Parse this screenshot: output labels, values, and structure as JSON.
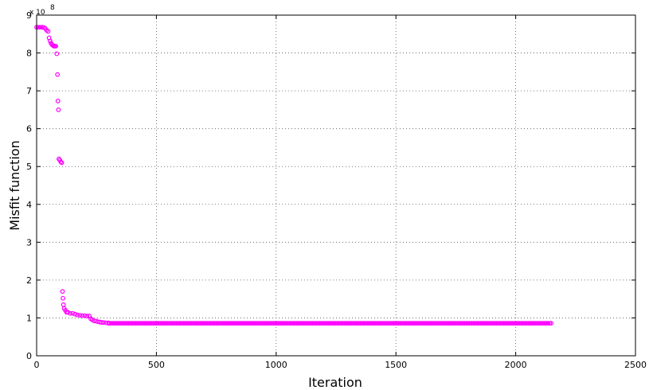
{
  "chart_data": {
    "type": "scatter",
    "xlabel": "Iteration",
    "ylabel": "Misfit function",
    "y_exponent_label": "x 10",
    "y_exponent": "8",
    "xlim": [
      0,
      2500
    ],
    "ylim": [
      0,
      9
    ],
    "x_ticks": [
      "0",
      "500",
      "1000",
      "1500",
      "2000",
      "2500"
    ],
    "y_ticks": [
      "0",
      "1",
      "2",
      "3",
      "4",
      "5",
      "6",
      "7",
      "8",
      "9"
    ],
    "grid": true,
    "marker": "circle-open",
    "color": "#ff00ff",
    "series": [
      {
        "points": [
          [
            0,
            8.68
          ],
          [
            6,
            8.68
          ],
          [
            12,
            8.68
          ],
          [
            18,
            8.68
          ],
          [
            24,
            8.68
          ],
          [
            30,
            8.67
          ],
          [
            36,
            8.65
          ],
          [
            42,
            8.6
          ],
          [
            48,
            8.57
          ],
          [
            52,
            8.4
          ],
          [
            56,
            8.32
          ],
          [
            60,
            8.26
          ],
          [
            64,
            8.22
          ],
          [
            68,
            8.2
          ],
          [
            72,
            8.18
          ],
          [
            76,
            8.18
          ],
          [
            80,
            8.18
          ],
          [
            84,
            7.98
          ],
          [
            87,
            7.43
          ],
          [
            89,
            6.73
          ],
          [
            91,
            6.5
          ],
          [
            93,
            5.2
          ],
          [
            97,
            5.17
          ],
          [
            101,
            5.12
          ],
          [
            105,
            5.1
          ],
          [
            108,
            1.7
          ],
          [
            110,
            1.52
          ],
          [
            112,
            1.35
          ],
          [
            115,
            1.25
          ],
          [
            120,
            1.2
          ],
          [
            125,
            1.15
          ],
          [
            130,
            1.15
          ],
          [
            140,
            1.12
          ],
          [
            150,
            1.12
          ],
          [
            160,
            1.1
          ],
          [
            170,
            1.08
          ],
          [
            180,
            1.07
          ],
          [
            190,
            1.06
          ],
          [
            200,
            1.06
          ],
          [
            210,
            1.05
          ],
          [
            220,
            1.05
          ],
          [
            226,
            0.98
          ],
          [
            232,
            0.95
          ],
          [
            240,
            0.92
          ],
          [
            248,
            0.92
          ],
          [
            256,
            0.9
          ],
          [
            264,
            0.89
          ],
          [
            272,
            0.88
          ],
          [
            280,
            0.88
          ],
          [
            290,
            0.87
          ],
          [
            300,
            0.87
          ]
        ],
        "plateau": {
          "x_start": 300,
          "x_end": 2150,
          "y": 0.86
        }
      }
    ]
  }
}
